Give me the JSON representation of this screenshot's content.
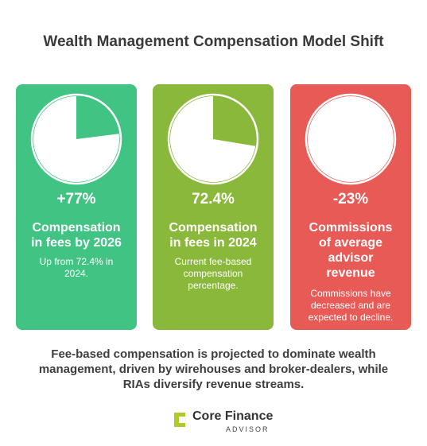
{
  "title": "Wealth Management Compensation Model Shift",
  "cards": [
    {
      "value": "+77%",
      "heading_lines": [
        "Compensation",
        "in fees by 2026"
      ],
      "desc_lines": [
        "Up from 72.4% in",
        "2024."
      ],
      "pie_fraction": 0.23,
      "color": "#41c383"
    },
    {
      "value": "72.4%",
      "heading_lines": [
        "Compensation",
        "in fees in 2024"
      ],
      "desc_lines": [
        "Current fee-based",
        "compensation",
        "percentage."
      ],
      "pie_fraction": 0.276,
      "color": "#8ab83a"
    },
    {
      "value": "-23%",
      "heading_lines": [
        "Commissions",
        "of average",
        "advisor",
        "revenue"
      ],
      "desc_lines": [
        "Commissions have",
        "decreased and are",
        "expected to decline."
      ],
      "pie_fraction": 0,
      "color": "#e85a56"
    }
  ],
  "caption_lines": [
    "Fee-based compensation is projected to dominate wealth",
    "management, driven by wirehouses and broker-dealers, while",
    "RIAs diversify revenue streams."
  ],
  "logo": {
    "brand": "Core Finance",
    "sub": "ADVISOR",
    "icon": "core-finance-logo-icon",
    "icon_color": "#b5c82a"
  }
}
